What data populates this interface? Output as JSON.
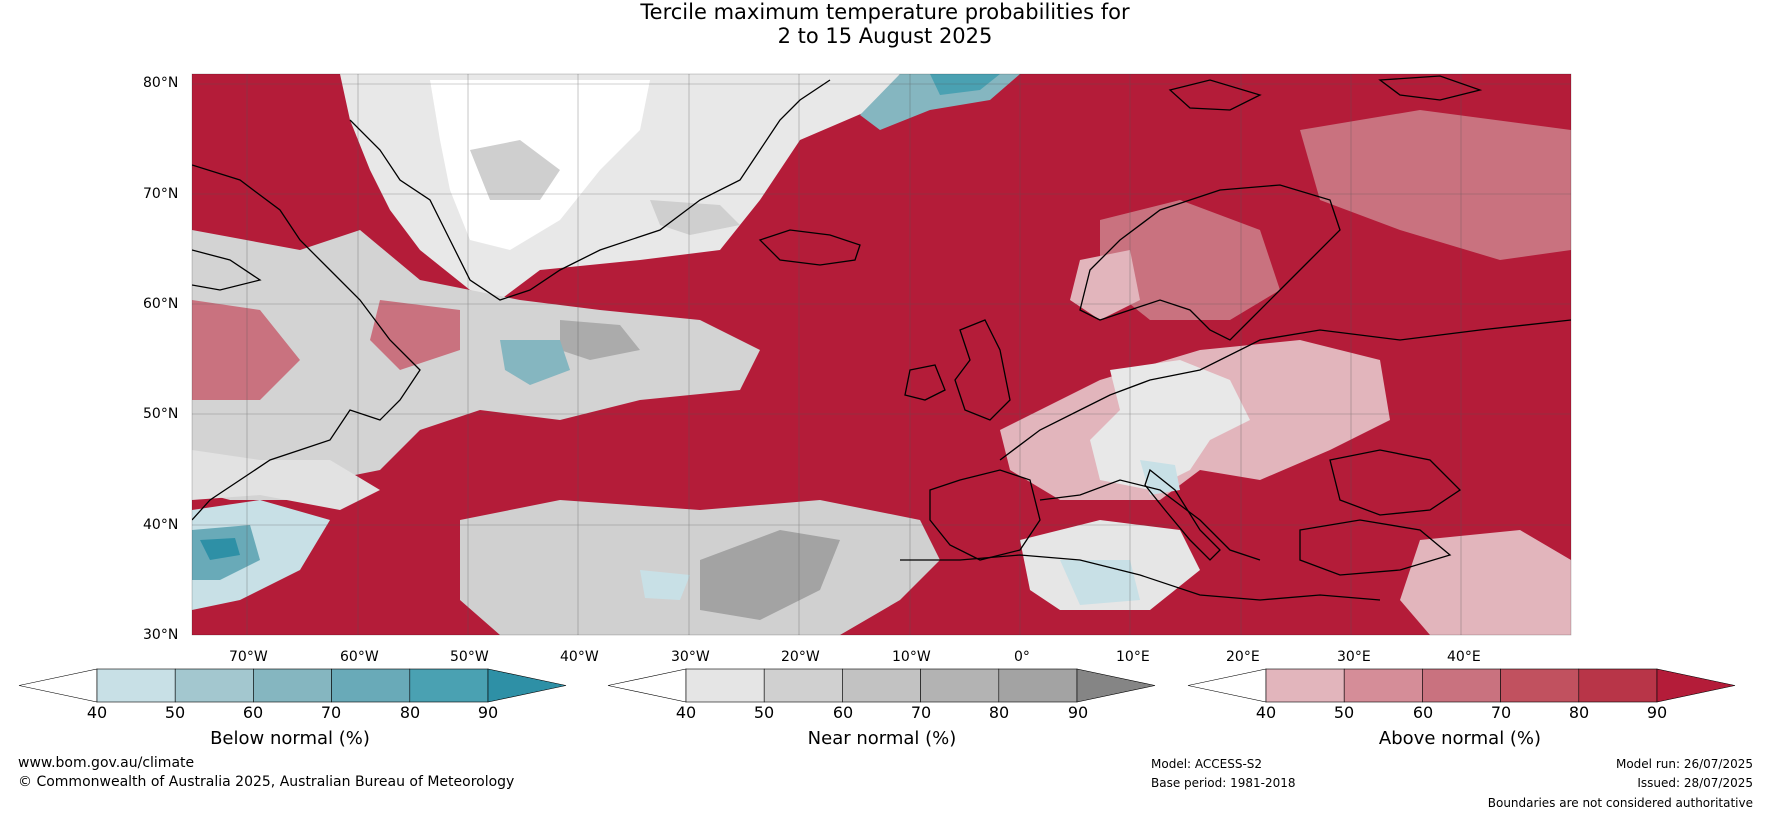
{
  "title": {
    "line1": "Tercile maximum temperature probabilities for",
    "line2": "2 to 15 August 2025"
  },
  "map": {
    "lat_labels": [
      "80°N",
      "70°N",
      "60°N",
      "50°N",
      "40°N",
      "30°N"
    ],
    "lon_labels": [
      "70°W",
      "60°W",
      "50°W",
      "40°W",
      "30°W",
      "20°W",
      "10°W",
      "0°",
      "10°E",
      "20°E",
      "30°E",
      "40°E"
    ],
    "extent": {
      "lon": [
        -80,
        45
      ],
      "lat": [
        30,
        81
      ]
    }
  },
  "colorbars": {
    "below": {
      "title": "Below normal (%)",
      "ticks": [
        "40",
        "50",
        "60",
        "70",
        "80",
        "90"
      ],
      "colors": [
        "#ffffff",
        "#c8e0e6",
        "#a3c7cf",
        "#85b6c0",
        "#69aab8",
        "#4aa1b2",
        "#2e90a6"
      ]
    },
    "near": {
      "title": "Near normal (%)",
      "ticks": [
        "40",
        "50",
        "60",
        "70",
        "80",
        "90"
      ],
      "colors": [
        "#ffffff",
        "#e5e5e5",
        "#d0d0d0",
        "#c2c2c2",
        "#b3b3b3",
        "#a3a3a3",
        "#858585"
      ]
    },
    "above": {
      "title": "Above normal (%)",
      "ticks": [
        "40",
        "50",
        "60",
        "70",
        "80",
        "90"
      ],
      "colors": [
        "#ffffff",
        "#e2b5bc",
        "#d58d98",
        "#c9727f",
        "#c1515f",
        "#b83548",
        "#b41c39"
      ]
    }
  },
  "footer": {
    "website": "www.bom.gov.au/climate",
    "copyright": "© Commonwealth of Australia 2025, Australian Bureau of Meteorology",
    "model": "Model: ACCESS-S2",
    "base_period": "Base period: 1981-2018",
    "model_run": "Model run: 26/07/2025",
    "issued": "Issued: 28/07/2025",
    "disclaimer": "Boundaries are not considered authoritative"
  },
  "palette": {
    "above_strong": "#b41c39",
    "above_mid": "#c9727f",
    "above_light": "#e2b5bc",
    "near_light": "#e5e5e5",
    "near_mid": "#c2c2c2",
    "near_dark": "#a3a3a3",
    "below_light": "#c8e0e6",
    "below_mid": "#69aab8",
    "below_dark": "#2e90a6"
  }
}
